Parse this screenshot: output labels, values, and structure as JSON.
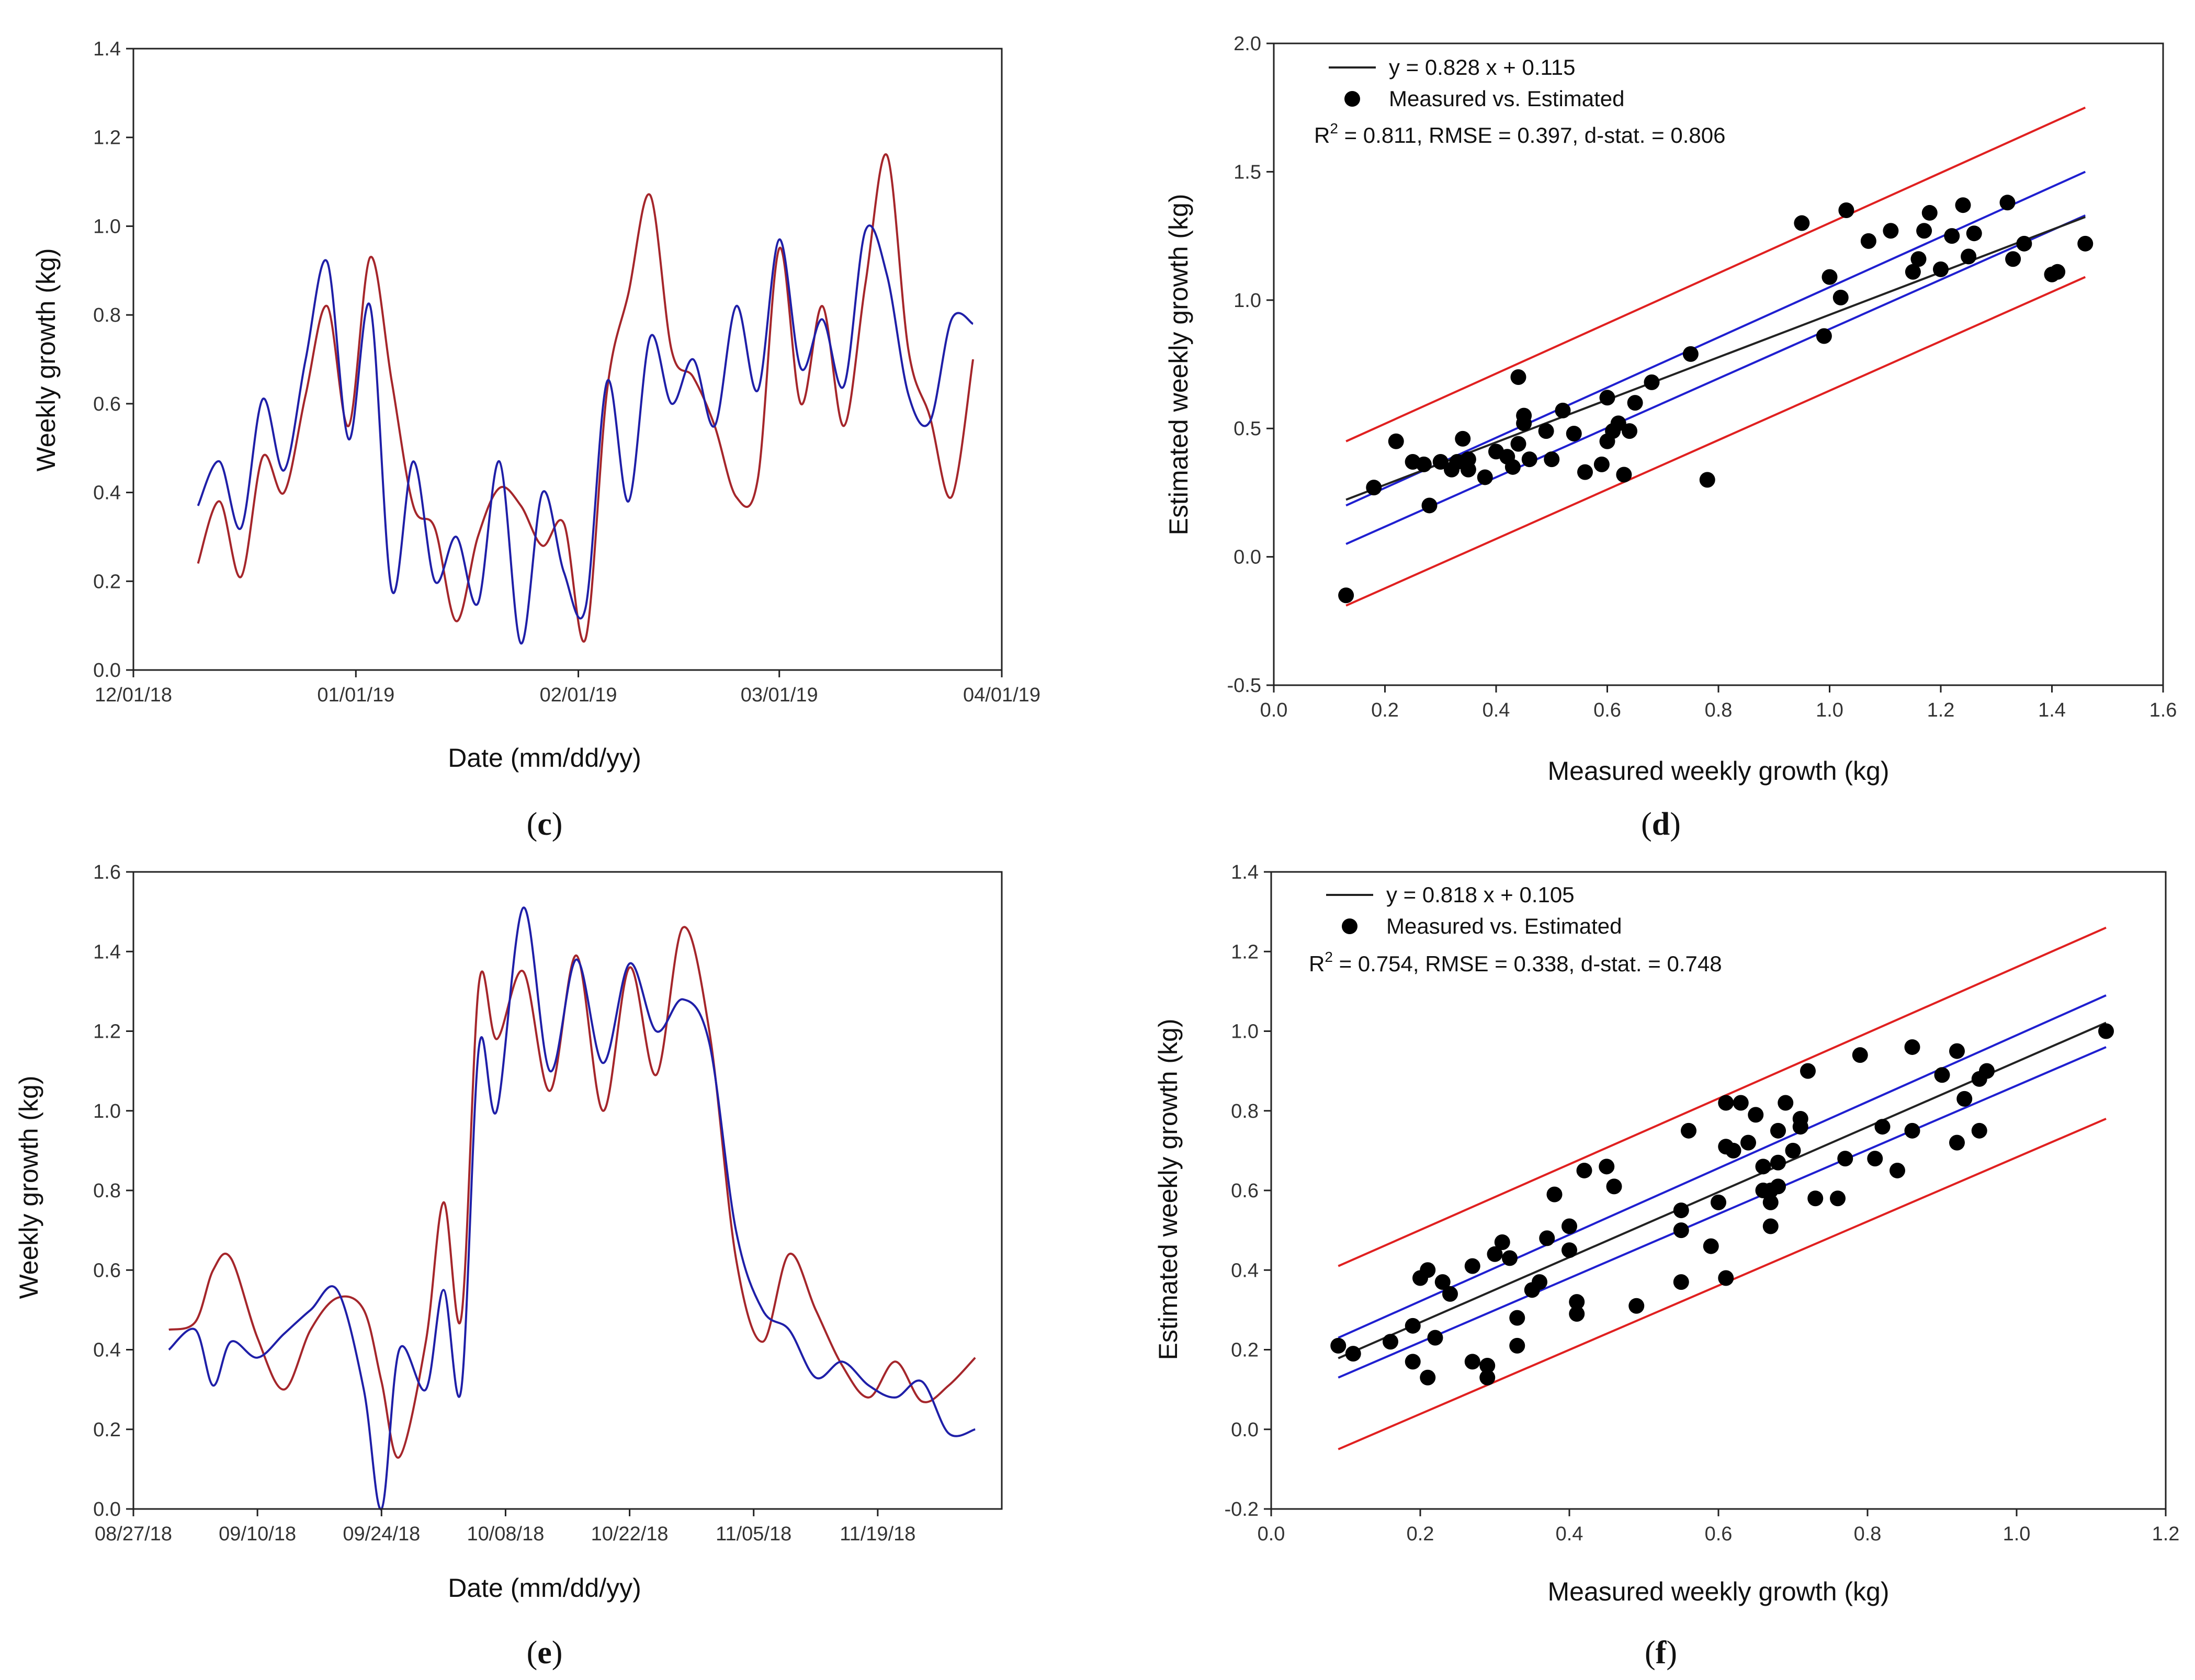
{
  "colors": {
    "estimated": "#a5262b",
    "measured": "#1f1fa8",
    "regression": "#222222",
    "confidence": "#1f1fd0",
    "prediction": "#e02020",
    "points": "#000000",
    "axis": "#222222"
  },
  "chart_data": [
    {
      "panel": "c",
      "type": "line",
      "xlabel": "Date (mm/dd/yy)",
      "ylabel": "Weekly growth (kg)",
      "x_ticks": [
        "12/01/18",
        "01/01/19",
        "02/01/19",
        "03/01/19",
        "04/01/19"
      ],
      "xlim": [
        "12/01/18",
        "04/01/19"
      ],
      "ylim": [
        0.0,
        1.4
      ],
      "y_ticks": [
        "0.0",
        "0.2",
        "0.4",
        "0.6",
        "0.8",
        "1.0",
        "1.2",
        "1.4"
      ],
      "legend": "none",
      "series": [
        {
          "color": "#a5262b",
          "x": [
            "12/10/18",
            "12/13/18",
            "12/16/18",
            "12/19/18",
            "12/22/18",
            "12/25/18",
            "12/28/18",
            "12/31/18",
            "01/03/19",
            "01/06/19",
            "01/09/19",
            "01/12/19",
            "01/15/19",
            "01/18/19",
            "01/21/19",
            "01/24/19",
            "01/27/19",
            "01/30/19",
            "02/02/19",
            "02/05/19",
            "02/08/19",
            "02/11/19",
            "02/14/19",
            "02/17/19",
            "02/20/19",
            "02/23/19",
            "02/26/19",
            "03/01/19",
            "03/04/19",
            "03/07/19",
            "03/10/19",
            "03/13/19",
            "03/16/19",
            "03/19/19",
            "03/22/19",
            "03/25/19",
            "03/28/19"
          ],
          "y": [
            0.24,
            0.38,
            0.21,
            0.48,
            0.4,
            0.62,
            0.82,
            0.55,
            0.93,
            0.65,
            0.37,
            0.32,
            0.11,
            0.3,
            0.41,
            0.37,
            0.28,
            0.33,
            0.07,
            0.63,
            0.85,
            1.07,
            0.72,
            0.66,
            0.55,
            0.39,
            0.43,
            0.95,
            0.6,
            0.82,
            0.55,
            0.87,
            1.16,
            0.72,
            0.57,
            0.39,
            0.7
          ]
        },
        {
          "color": "#1f1fa8",
          "x": [
            "12/10/18",
            "12/13/18",
            "12/16/18",
            "12/19/18",
            "12/22/18",
            "12/25/18",
            "12/28/18",
            "12/31/18",
            "01/03/19",
            "01/06/19",
            "01/09/19",
            "01/12/19",
            "01/15/19",
            "01/18/19",
            "01/21/19",
            "01/24/19",
            "01/27/19",
            "01/30/19",
            "02/02/19",
            "02/05/19",
            "02/08/19",
            "02/11/19",
            "02/14/19",
            "02/17/19",
            "02/20/19",
            "02/23/19",
            "02/26/19",
            "03/01/19",
            "03/04/19",
            "03/07/19",
            "03/10/19",
            "03/13/19",
            "03/16/19",
            "03/19/19",
            "03/22/19",
            "03/25/19",
            "03/28/19"
          ],
          "y": [
            0.37,
            0.47,
            0.32,
            0.61,
            0.45,
            0.7,
            0.92,
            0.52,
            0.82,
            0.18,
            0.47,
            0.2,
            0.3,
            0.15,
            0.47,
            0.06,
            0.4,
            0.22,
            0.14,
            0.65,
            0.38,
            0.75,
            0.6,
            0.7,
            0.55,
            0.82,
            0.63,
            0.97,
            0.68,
            0.79,
            0.64,
            0.99,
            0.89,
            0.62,
            0.56,
            0.79,
            0.78
          ]
        }
      ]
    },
    {
      "panel": "d",
      "type": "scatter",
      "xlabel": "Measured weekly growth (kg)",
      "ylabel": "Estimated weekly growth (kg)",
      "xlim": [
        0.0,
        1.6
      ],
      "ylim": [
        -0.5,
        2.0
      ],
      "x_ticks": [
        "0.0",
        "0.2",
        "0.4",
        "0.6",
        "0.8",
        "1.0",
        "1.2",
        "1.4",
        "1.6"
      ],
      "y_ticks": [
        "-0.5",
        "0.0",
        "0.5",
        "1.0",
        "1.5",
        "2.0"
      ],
      "legend": "top-left",
      "legend_items": {
        "line": "y = 0.828 x + 0.115",
        "points": "Measured vs. Estimated"
      },
      "stats_text": {
        "r": "R",
        "sq": "2",
        "rest": " = 0.811, RMSE = 0.397, d-stat. = 0.806"
      },
      "regression": {
        "slope": 0.828,
        "intercept": 0.115,
        "x_range": [
          0.13,
          1.46
        ]
      },
      "confidence_band": {
        "upper": [
          [
            0.13,
            0.2
          ],
          [
            1.46,
            1.5
          ]
        ],
        "lower": [
          [
            0.13,
            0.05
          ],
          [
            1.46,
            1.33
          ]
        ]
      },
      "prediction_band": {
        "upper": [
          [
            0.13,
            0.45
          ],
          [
            1.46,
            1.75
          ]
        ],
        "lower": [
          [
            0.13,
            -0.19
          ],
          [
            1.46,
            1.09
          ]
        ]
      },
      "points": [
        [
          0.13,
          -0.15
        ],
        [
          0.18,
          0.27
        ],
        [
          0.22,
          0.45
        ],
        [
          0.25,
          0.37
        ],
        [
          0.27,
          0.36
        ],
        [
          0.28,
          0.2
        ],
        [
          0.3,
          0.37
        ],
        [
          0.32,
          0.34
        ],
        [
          0.33,
          0.37
        ],
        [
          0.34,
          0.46
        ],
        [
          0.35,
          0.34
        ],
        [
          0.35,
          0.38
        ],
        [
          0.38,
          0.31
        ],
        [
          0.4,
          0.41
        ],
        [
          0.42,
          0.39
        ],
        [
          0.43,
          0.35
        ],
        [
          0.44,
          0.44
        ],
        [
          0.44,
          0.7
        ],
        [
          0.45,
          0.52
        ],
        [
          0.45,
          0.55
        ],
        [
          0.46,
          0.38
        ],
        [
          0.49,
          0.49
        ],
        [
          0.5,
          0.38
        ],
        [
          0.52,
          0.57
        ],
        [
          0.54,
          0.48
        ],
        [
          0.56,
          0.33
        ],
        [
          0.59,
          0.36
        ],
        [
          0.6,
          0.45
        ],
        [
          0.6,
          0.62
        ],
        [
          0.61,
          0.49
        ],
        [
          0.62,
          0.52
        ],
        [
          0.63,
          0.32
        ],
        [
          0.64,
          0.49
        ],
        [
          0.65,
          0.6
        ],
        [
          0.68,
          0.68
        ],
        [
          0.75,
          0.79
        ],
        [
          0.78,
          0.3
        ],
        [
          0.95,
          1.3
        ],
        [
          0.99,
          0.86
        ],
        [
          1.0,
          1.09
        ],
        [
          1.02,
          1.01
        ],
        [
          1.03,
          1.35
        ],
        [
          1.07,
          1.23
        ],
        [
          1.11,
          1.27
        ],
        [
          1.15,
          1.11
        ],
        [
          1.16,
          1.16
        ],
        [
          1.17,
          1.27
        ],
        [
          1.18,
          1.34
        ],
        [
          1.2,
          1.12
        ],
        [
          1.22,
          1.25
        ],
        [
          1.24,
          1.37
        ],
        [
          1.25,
          1.17
        ],
        [
          1.26,
          1.26
        ],
        [
          1.32,
          1.38
        ],
        [
          1.33,
          1.16
        ],
        [
          1.35,
          1.22
        ],
        [
          1.4,
          1.1
        ],
        [
          1.41,
          1.11
        ],
        [
          1.46,
          1.22
        ]
      ]
    },
    {
      "panel": "e",
      "type": "line",
      "xlabel": "Date (mm/dd/yy)",
      "ylabel": "Weekly growth (kg)",
      "x_ticks": [
        "08/27/18",
        "09/10/18",
        "09/24/18",
        "10/08/18",
        "10/22/18",
        "11/05/18",
        "11/19/18"
      ],
      "xlim": [
        "08/27/18",
        "12/03/18"
      ],
      "ylim": [
        0.0,
        1.6
      ],
      "y_ticks": [
        "0.0",
        "0.2",
        "0.4",
        "0.6",
        "0.8",
        "1.0",
        "1.2",
        "1.4",
        "1.6"
      ],
      "legend": "none",
      "series": [
        {
          "color": "#a5262b",
          "x": [
            "08/31/18",
            "09/03/18",
            "09/05/18",
            "09/07/18",
            "09/10/18",
            "09/13/18",
            "09/16/18",
            "09/19/18",
            "09/22/18",
            "09/24/18",
            "09/26/18",
            "09/29/18",
            "10/01/18",
            "10/03/18",
            "10/05/18",
            "10/07/18",
            "10/10/18",
            "10/13/18",
            "10/16/18",
            "10/19/18",
            "10/22/18",
            "10/25/18",
            "10/28/18",
            "10/31/18",
            "11/03/18",
            "11/06/18",
            "11/09/18",
            "11/12/18",
            "11/15/18",
            "11/18/18",
            "11/21/18",
            "11/24/18",
            "11/27/18",
            "11/30/18"
          ],
          "y": [
            0.45,
            0.47,
            0.6,
            0.63,
            0.43,
            0.3,
            0.45,
            0.53,
            0.5,
            0.32,
            0.13,
            0.42,
            0.77,
            0.48,
            1.32,
            1.18,
            1.35,
            1.05,
            1.39,
            1.0,
            1.36,
            1.09,
            1.46,
            1.2,
            0.63,
            0.42,
            0.64,
            0.5,
            0.36,
            0.28,
            0.37,
            0.27,
            0.31,
            0.38
          ]
        },
        {
          "color": "#1f1fa8",
          "x": [
            "08/31/18",
            "09/03/18",
            "09/05/18",
            "09/07/18",
            "09/10/18",
            "09/13/18",
            "09/16/18",
            "09/19/18",
            "09/22/18",
            "09/24/18",
            "09/26/18",
            "09/29/18",
            "10/01/18",
            "10/03/18",
            "10/05/18",
            "10/07/18",
            "10/10/18",
            "10/13/18",
            "10/16/18",
            "10/19/18",
            "10/22/18",
            "10/25/18",
            "10/28/18",
            "10/31/18",
            "11/03/18",
            "11/06/18",
            "11/09/18",
            "11/12/18",
            "11/15/18",
            "11/18/18",
            "11/21/18",
            "11/24/18",
            "11/27/18",
            "11/30/18"
          ],
          "y": [
            0.4,
            0.45,
            0.31,
            0.42,
            0.38,
            0.44,
            0.5,
            0.55,
            0.3,
            0.0,
            0.4,
            0.3,
            0.55,
            0.3,
            1.16,
            1.0,
            1.51,
            1.1,
            1.38,
            1.12,
            1.37,
            1.2,
            1.28,
            1.17,
            0.7,
            0.5,
            0.45,
            0.33,
            0.37,
            0.31,
            0.28,
            0.32,
            0.19,
            0.2
          ]
        }
      ]
    },
    {
      "panel": "f",
      "type": "scatter",
      "xlabel": "Measured weekly growth (kg)",
      "ylabel": "Estimated weekly growth (kg)",
      "xlim": [
        0.0,
        1.2
      ],
      "ylim": [
        -0.2,
        1.4
      ],
      "x_ticks": [
        "0.0",
        "0.2",
        "0.4",
        "0.6",
        "0.8",
        "1.0",
        "1.2"
      ],
      "y_ticks": [
        "-0.2",
        "0.0",
        "0.2",
        "0.4",
        "0.6",
        "0.8",
        "1.0",
        "1.2",
        "1.4"
      ],
      "legend": "top-left",
      "legend_items": {
        "line": "y = 0.818 x + 0.105",
        "points": "Measured vs. Estimated"
      },
      "stats_text": {
        "r": "R",
        "sq": "2",
        "rest": " = 0.754, RMSE = 0.338, d-stat. = 0.748"
      },
      "regression": {
        "slope": 0.818,
        "intercept": 0.105,
        "x_range": [
          0.09,
          1.12
        ]
      },
      "confidence_band": {
        "upper": [
          [
            0.09,
            0.23
          ],
          [
            1.12,
            1.09
          ]
        ],
        "lower": [
          [
            0.09,
            0.13
          ],
          [
            1.12,
            0.96
          ]
        ]
      },
      "prediction_band": {
        "upper": [
          [
            0.09,
            0.41
          ],
          [
            1.12,
            1.26
          ]
        ],
        "lower": [
          [
            0.09,
            -0.05
          ],
          [
            1.12,
            0.78
          ]
        ]
      },
      "points": [
        [
          0.09,
          0.21
        ],
        [
          0.11,
          0.19
        ],
        [
          0.16,
          0.22
        ],
        [
          0.19,
          0.17
        ],
        [
          0.19,
          0.26
        ],
        [
          0.2,
          0.38
        ],
        [
          0.21,
          0.4
        ],
        [
          0.21,
          0.13
        ],
        [
          0.22,
          0.23
        ],
        [
          0.23,
          0.37
        ],
        [
          0.24,
          0.34
        ],
        [
          0.27,
          0.41
        ],
        [
          0.27,
          0.17
        ],
        [
          0.29,
          0.13
        ],
        [
          0.29,
          0.16
        ],
        [
          0.3,
          0.44
        ],
        [
          0.31,
          0.47
        ],
        [
          0.32,
          0.43
        ],
        [
          0.33,
          0.21
        ],
        [
          0.33,
          0.28
        ],
        [
          0.35,
          0.35
        ],
        [
          0.36,
          0.37
        ],
        [
          0.37,
          0.48
        ],
        [
          0.38,
          0.59
        ],
        [
          0.4,
          0.51
        ],
        [
          0.4,
          0.45
        ],
        [
          0.41,
          0.32
        ],
        [
          0.41,
          0.29
        ],
        [
          0.42,
          0.65
        ],
        [
          0.45,
          0.66
        ],
        [
          0.46,
          0.61
        ],
        [
          0.49,
          0.31
        ],
        [
          0.55,
          0.37
        ],
        [
          0.55,
          0.5
        ],
        [
          0.55,
          0.55
        ],
        [
          0.56,
          0.75
        ],
        [
          0.59,
          0.46
        ],
        [
          0.6,
          0.57
        ],
        [
          0.61,
          0.38
        ],
        [
          0.61,
          0.82
        ],
        [
          0.61,
          0.71
        ],
        [
          0.62,
          0.7
        ],
        [
          0.63,
          0.82
        ],
        [
          0.64,
          0.72
        ],
        [
          0.65,
          0.79
        ],
        [
          0.66,
          0.66
        ],
        [
          0.66,
          0.6
        ],
        [
          0.67,
          0.51
        ],
        [
          0.67,
          0.57
        ],
        [
          0.67,
          0.6
        ],
        [
          0.68,
          0.61
        ],
        [
          0.68,
          0.67
        ],
        [
          0.68,
          0.75
        ],
        [
          0.69,
          0.82
        ],
        [
          0.7,
          0.7
        ],
        [
          0.71,
          0.78
        ],
        [
          0.71,
          0.76
        ],
        [
          0.72,
          0.9
        ],
        [
          0.73,
          0.58
        ],
        [
          0.76,
          0.58
        ],
        [
          0.77,
          0.68
        ],
        [
          0.79,
          0.94
        ],
        [
          0.81,
          0.68
        ],
        [
          0.82,
          0.76
        ],
        [
          0.84,
          0.65
        ],
        [
          0.86,
          0.75
        ],
        [
          0.86,
          0.96
        ],
        [
          0.9,
          0.89
        ],
        [
          0.92,
          0.95
        ],
        [
          0.92,
          0.72
        ],
        [
          0.93,
          0.83
        ],
        [
          0.95,
          0.75
        ],
        [
          0.95,
          0.88
        ],
        [
          0.96,
          0.9
        ],
        [
          1.12,
          1.0
        ]
      ]
    }
  ],
  "panel_labels": {
    "c": [
      "(",
      "c",
      ")"
    ],
    "d": [
      "(",
      "d",
      ")"
    ],
    "e": [
      "(",
      "e",
      ")"
    ],
    "f": [
      "(",
      "f",
      ")"
    ]
  }
}
